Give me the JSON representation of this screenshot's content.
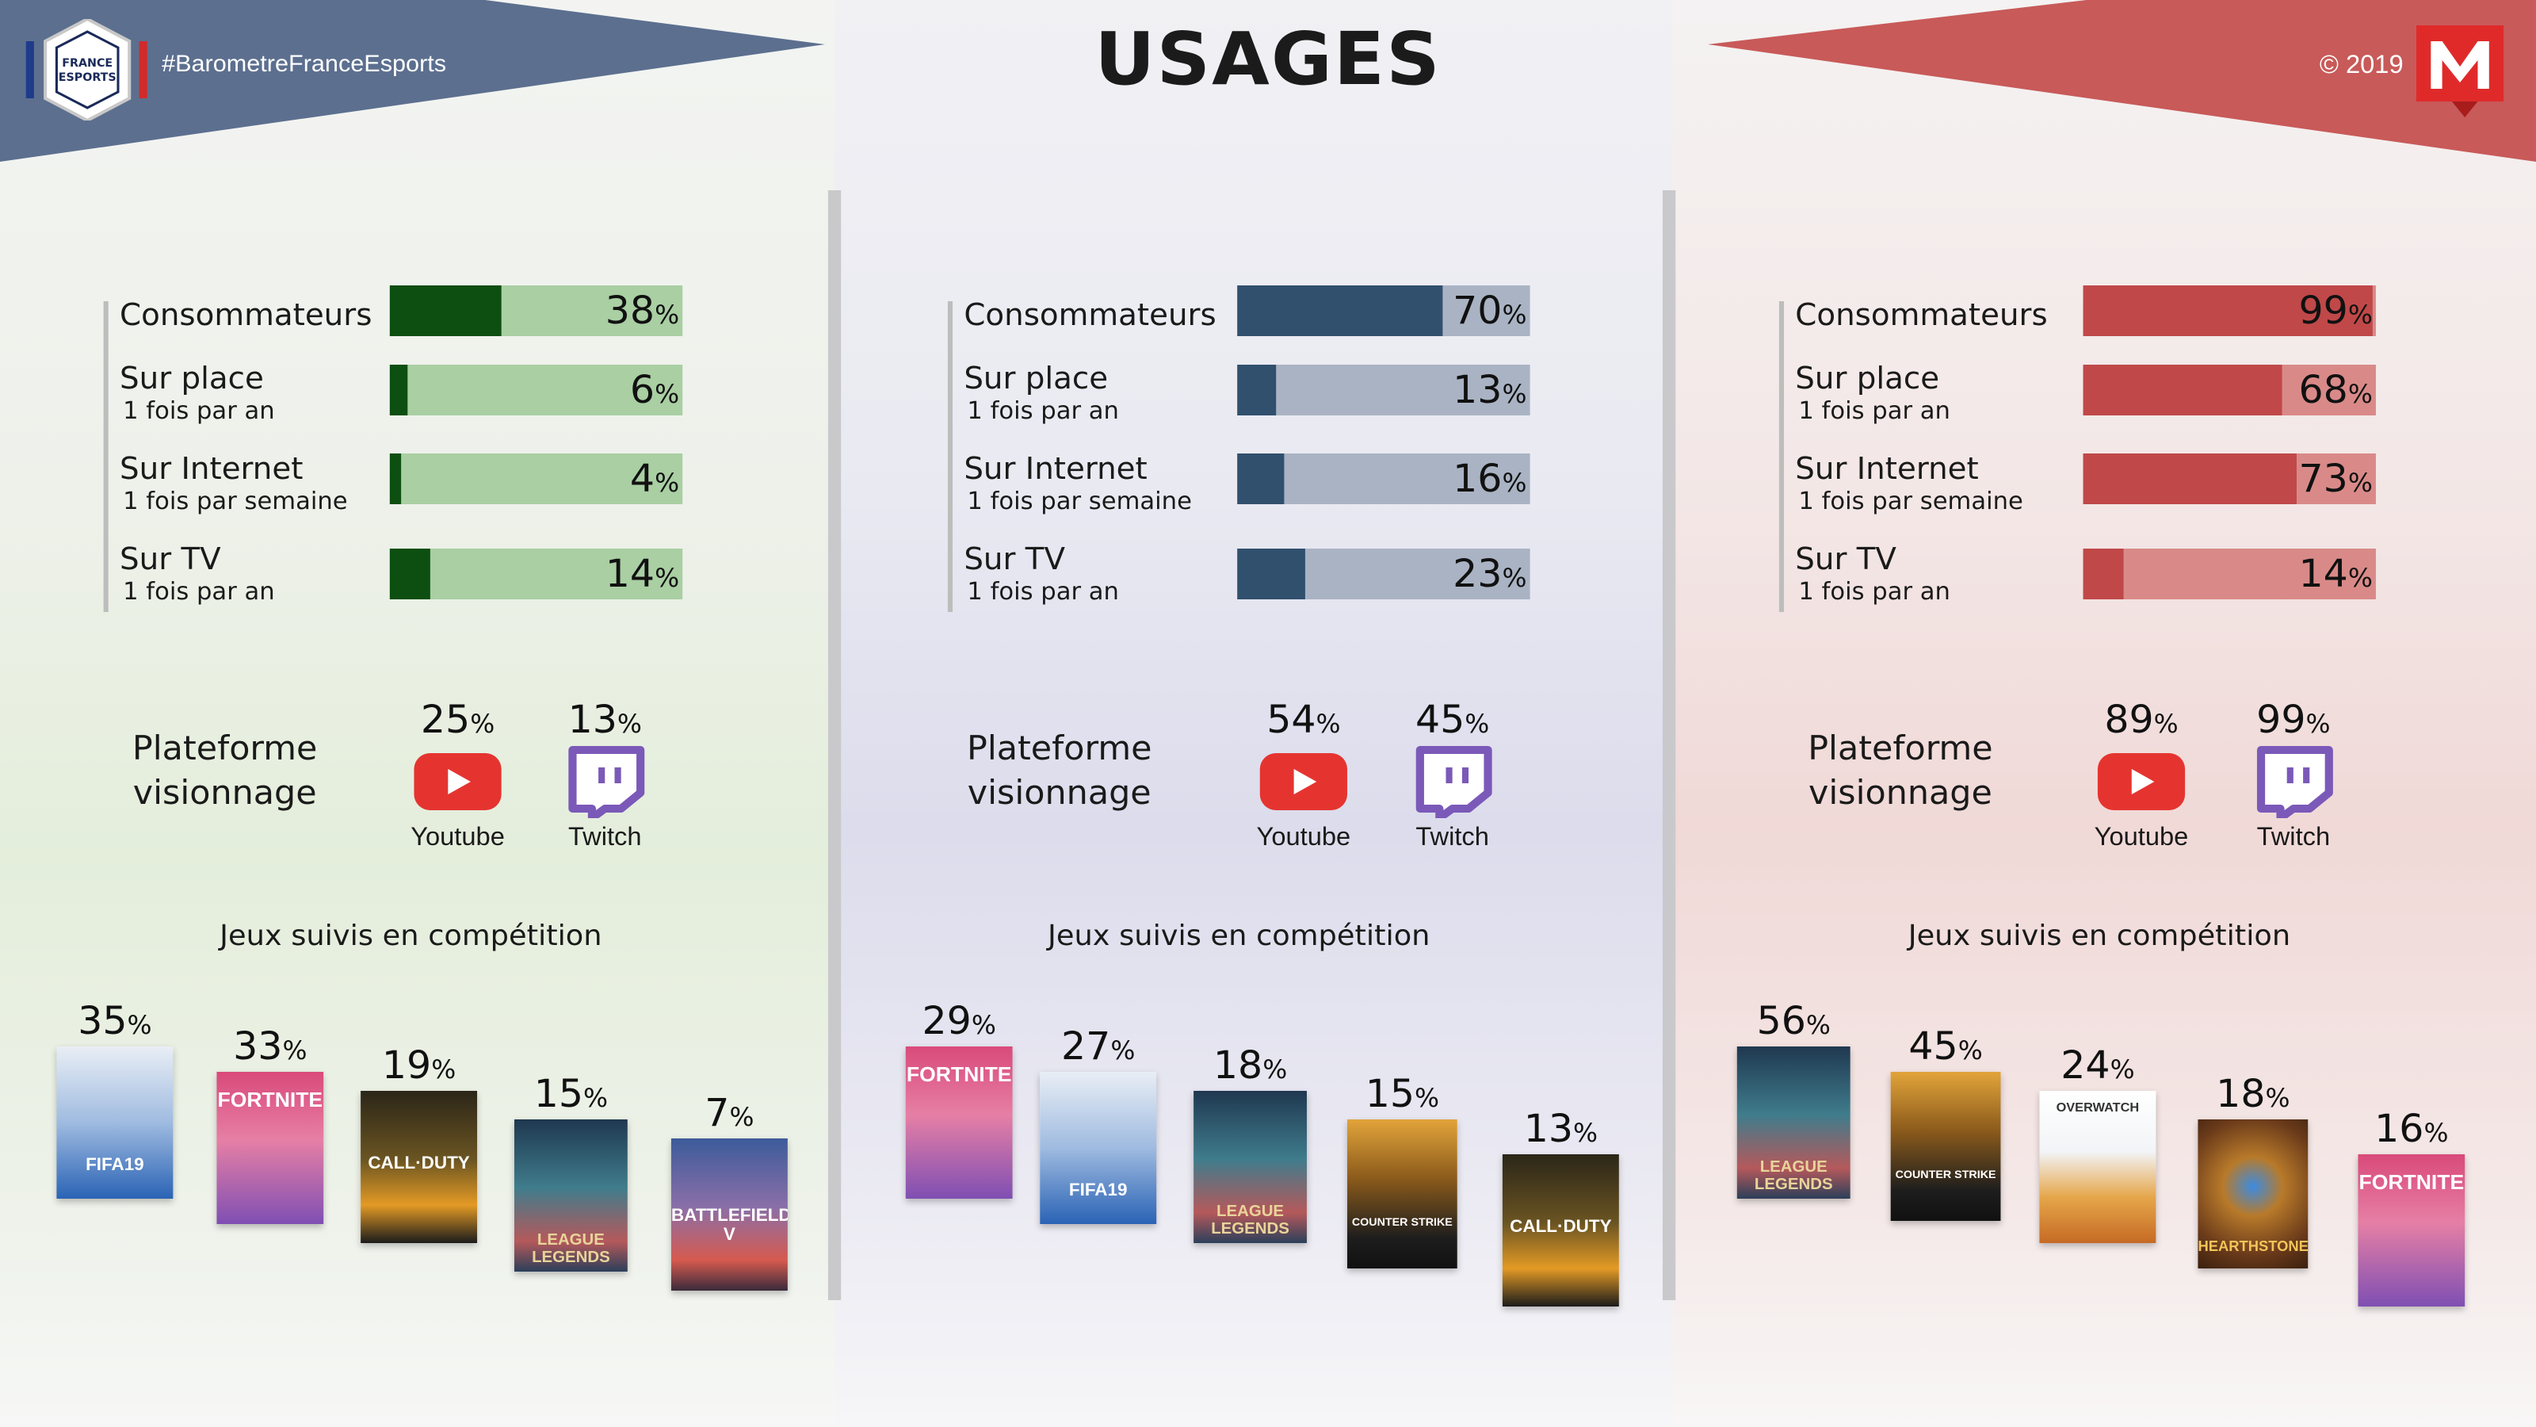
{
  "header": {
    "title": "USAGES",
    "hashtag": "#BarometreFranceEsports",
    "copyright": "© 2019",
    "logo_text": "FRANCE ESPORTS"
  },
  "colors": {
    "left_accent": "#0c4f10",
    "left_track": "#a9cfa3",
    "mid_accent": "#31506e",
    "mid_track": "#a9b3c3",
    "right_accent": "#c04848",
    "right_track": "#d98a88",
    "banner_left": "#5c6f8f",
    "banner_right": "#c85a59",
    "youtube": "#e53430",
    "twitch": "#7b59b8"
  },
  "panels": [
    {
      "rows": [
        {
          "label": "Consommateurs",
          "sub": "",
          "value": 38,
          "pct": "%"
        },
        {
          "label": "Sur place",
          "sub": "1 fois par an",
          "value": 6,
          "pct": "%"
        },
        {
          "label": "Sur Internet",
          "sub": "1 fois par semaine",
          "value": 4,
          "pct": "%"
        },
        {
          "label": "Sur TV",
          "sub": "1 fois par an",
          "value": 14,
          "pct": "%"
        }
      ],
      "platform_label_1": "Plateforme",
      "platform_label_2": "visionnage",
      "youtube": {
        "value": "25",
        "name": "Youtube"
      },
      "twitch": {
        "value": "13",
        "name": "Twitch"
      },
      "games_title": "Jeux suivis en compétition",
      "games": [
        {
          "value": "35",
          "game": "FIFA19",
          "icon": "fifa19-cover"
        },
        {
          "value": "33",
          "game": "FORTNITE",
          "icon": "fortnite-cover"
        },
        {
          "value": "19",
          "game": "CALL·DUTY",
          "icon": "call-of-duty-cover"
        },
        {
          "value": "15",
          "game": "LEAGUE LEGENDS",
          "icon": "league-of-legends-cover"
        },
        {
          "value": "7",
          "game": "BATTLEFIELD V",
          "icon": "battlefield-cover"
        }
      ]
    },
    {
      "rows": [
        {
          "label": "Consommateurs",
          "sub": "",
          "value": 70,
          "pct": "%"
        },
        {
          "label": "Sur place",
          "sub": "1 fois par an",
          "value": 13,
          "pct": "%"
        },
        {
          "label": "Sur Internet",
          "sub": "1 fois par semaine",
          "value": 16,
          "pct": "%"
        },
        {
          "label": "Sur TV",
          "sub": "1 fois par an",
          "value": 23,
          "pct": "%"
        }
      ],
      "platform_label_1": "Plateforme",
      "platform_label_2": "visionnage",
      "youtube": {
        "value": "54",
        "name": "Youtube"
      },
      "twitch": {
        "value": "45",
        "name": "Twitch"
      },
      "games_title": "Jeux suivis en compétition",
      "games": [
        {
          "value": "29",
          "game": "FORTNITE",
          "icon": "fortnite-cover"
        },
        {
          "value": "27",
          "game": "FIFA19",
          "icon": "fifa19-cover"
        },
        {
          "value": "18",
          "game": "LEAGUE LEGENDS",
          "icon": "league-of-legends-cover"
        },
        {
          "value": "15",
          "game": "COUNTER STRIKE",
          "icon": "counter-strike-cover"
        },
        {
          "value": "13",
          "game": "CALL·DUTY",
          "icon": "call-of-duty-cover"
        }
      ]
    },
    {
      "rows": [
        {
          "label": "Consommateurs",
          "sub": "",
          "value": 99,
          "pct": "%"
        },
        {
          "label": "Sur place",
          "sub": "1 fois par an",
          "value": 68,
          "pct": "%"
        },
        {
          "label": "Sur Internet",
          "sub": "1 fois par semaine",
          "value": 73,
          "pct": "%"
        },
        {
          "label": "Sur TV",
          "sub": "1 fois par an",
          "value": 14,
          "pct": "%"
        }
      ],
      "platform_label_1": "Plateforme",
      "platform_label_2": "visionnage",
      "youtube": {
        "value": "89",
        "name": "Youtube"
      },
      "twitch": {
        "value": "99",
        "name": "Twitch"
      },
      "games_title": "Jeux suivis en compétition",
      "games": [
        {
          "value": "56",
          "game": "LEAGUE LEGENDS",
          "icon": "league-of-legends-cover"
        },
        {
          "value": "45",
          "game": "COUNTER STRIKE",
          "icon": "counter-strike-cover"
        },
        {
          "value": "24",
          "game": "OVERWATCH",
          "icon": "overwatch-cover"
        },
        {
          "value": "18",
          "game": "HEARTHSTONE",
          "icon": "hearthstone-cover"
        },
        {
          "value": "16",
          "game": "FORTNITE",
          "icon": "fortnite-cover"
        }
      ]
    }
  ]
}
